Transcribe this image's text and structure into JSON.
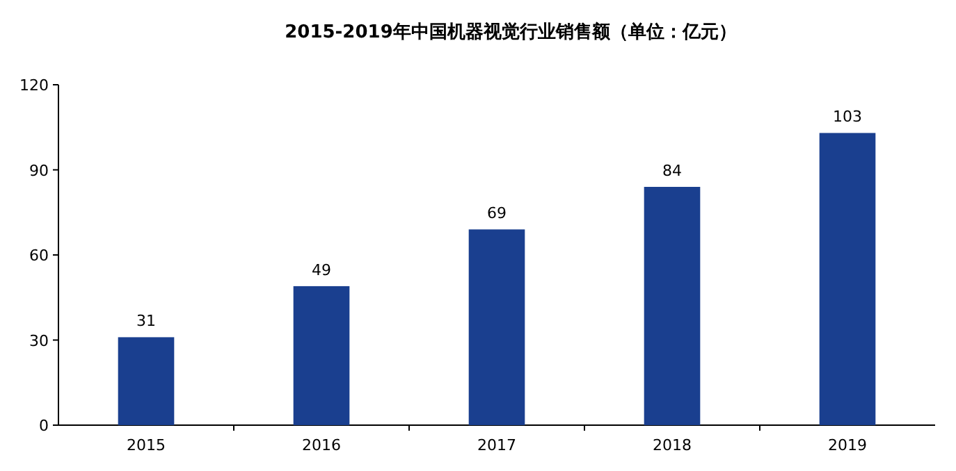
{
  "chart_data": {
    "type": "bar",
    "title": "2015-2019年中国机器视觉行业销售额（单位：亿元）",
    "categories": [
      "2015",
      "2016",
      "2017",
      "2018",
      "2019"
    ],
    "values": [
      31,
      49,
      69,
      84,
      103
    ],
    "color": "#1a3f8f",
    "ylim": [
      0,
      120
    ],
    "yticks": [
      0,
      30,
      60,
      90,
      120
    ],
    "data_labels": true
  }
}
